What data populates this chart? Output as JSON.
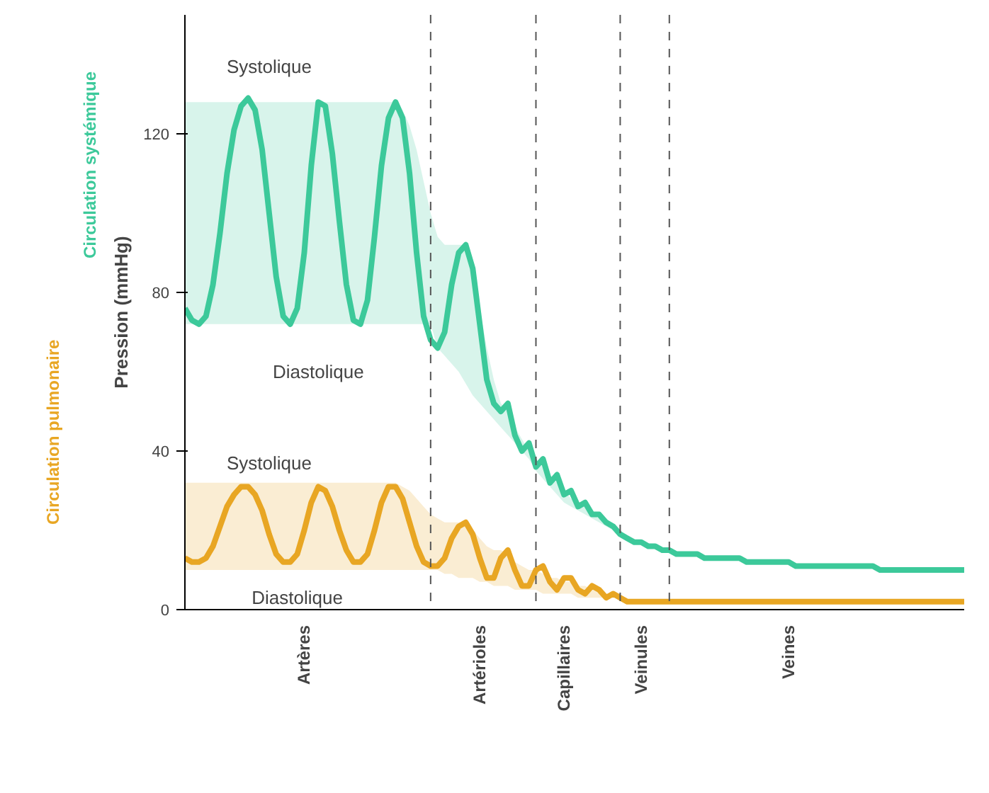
{
  "chart_data": {
    "type": "line",
    "ylabel": "Pression (mmHg)",
    "categories": [
      null,
      null,
      null,
      null,
      null,
      null,
      null,
      null,
      null,
      null,
      null,
      null,
      null,
      null,
      null,
      null,
      null,
      "Artères",
      null,
      null,
      null,
      null,
      null,
      null,
      null,
      null,
      null,
      null,
      null,
      null,
      null,
      null,
      null,
      null,
      null,
      null,
      null,
      null,
      null,
      null,
      null,
      null,
      "Artérioles",
      null,
      null,
      null,
      null,
      null,
      null,
      null,
      null,
      null,
      null,
      null,
      "Capillaires",
      null,
      null,
      null,
      null,
      null,
      null,
      null,
      null,
      null,
      null,
      "Veinules",
      null,
      null,
      null,
      null,
      null,
      null,
      null,
      null,
      null,
      null,
      null,
      null,
      null,
      null,
      null,
      null,
      null,
      null,
      null,
      null,
      "Veines",
      null,
      null,
      null,
      null,
      null,
      null,
      null,
      null,
      null,
      null,
      null,
      null,
      null,
      null,
      null,
      null,
      null,
      null,
      null,
      null,
      null,
      null,
      null,
      null,
      null
    ],
    "series": [
      {
        "name": "Circulation systémique",
        "color": "#3cc99a",
        "values": [
          76,
          73,
          72,
          74,
          82,
          95,
          110,
          121,
          127,
          129,
          126,
          116,
          100,
          84,
          74,
          72,
          76,
          90,
          112,
          128,
          127,
          115,
          98,
          82,
          73,
          72,
          78,
          94,
          112,
          124,
          128,
          124,
          110,
          90,
          74,
          68,
          66,
          70,
          82,
          90,
          92,
          86,
          72,
          58,
          52,
          50,
          52,
          44,
          40,
          42,
          36,
          38,
          32,
          34,
          29,
          30,
          26,
          27,
          24,
          24,
          22,
          21,
          19,
          18,
          17,
          17,
          16,
          16,
          15,
          15,
          14,
          14,
          14,
          14,
          13,
          13,
          13,
          13,
          13,
          13,
          12,
          12,
          12,
          12,
          12,
          12,
          12,
          11,
          11,
          11,
          11,
          11,
          11,
          11,
          11,
          11,
          11,
          11,
          11,
          10,
          10,
          10,
          10,
          10,
          10,
          10,
          10,
          10,
          10,
          10,
          10,
          10
        ],
        "upper": [
          128,
          128,
          128,
          128,
          128,
          128,
          128,
          128,
          128,
          128,
          128,
          128,
          128,
          128,
          128,
          128,
          128,
          128,
          128,
          128,
          128,
          128,
          128,
          128,
          128,
          128,
          128,
          128,
          128,
          128,
          128,
          126,
          122,
          116,
          108,
          100,
          94,
          92,
          92,
          92,
          92,
          86,
          76,
          66,
          58,
          52,
          50,
          46,
          43,
          40,
          38,
          36,
          34,
          32,
          30,
          28,
          27,
          26,
          24,
          23,
          22,
          21,
          20,
          null,
          null,
          null,
          null,
          null,
          null,
          null,
          null,
          null,
          null,
          null,
          null,
          null,
          null,
          null,
          null,
          null,
          null,
          null,
          null,
          null,
          null,
          null,
          null,
          null,
          null,
          null,
          null,
          null,
          null,
          null,
          null,
          null,
          null,
          null,
          null,
          null,
          null,
          null,
          null,
          null,
          null,
          null,
          null,
          null,
          null,
          null,
          null,
          null
        ],
        "lower": [
          72,
          72,
          72,
          72,
          72,
          72,
          72,
          72,
          72,
          72,
          72,
          72,
          72,
          72,
          72,
          72,
          72,
          72,
          72,
          72,
          72,
          72,
          72,
          72,
          72,
          72,
          72,
          72,
          72,
          72,
          72,
          72,
          72,
          72,
          72,
          72,
          66,
          64,
          62,
          60,
          57,
          54,
          52,
          50,
          48,
          46,
          44,
          42,
          40,
          38,
          35,
          33,
          31,
          29,
          27,
          26,
          25,
          24,
          23,
          22,
          21,
          20,
          19,
          null,
          null,
          null,
          null,
          null,
          null,
          null,
          null,
          null,
          null,
          null,
          null,
          null,
          null,
          null,
          null,
          null,
          null,
          null,
          null,
          null,
          null,
          null,
          null,
          null,
          null,
          null,
          null,
          null,
          null,
          null,
          null,
          null,
          null,
          null,
          null,
          null,
          null,
          null,
          null,
          null,
          null,
          null,
          null,
          null,
          null,
          null,
          null,
          null
        ]
      },
      {
        "name": "Circulation pulmonaire",
        "color": "#e8a623",
        "values": [
          13,
          12,
          12,
          13,
          16,
          21,
          26,
          29,
          31,
          31,
          29,
          25,
          19,
          14,
          12,
          12,
          14,
          20,
          27,
          31,
          30,
          26,
          20,
          15,
          12,
          12,
          14,
          20,
          27,
          31,
          31,
          28,
          22,
          16,
          12,
          11,
          11,
          13,
          18,
          21,
          22,
          19,
          13,
          8,
          8,
          13,
          15,
          10,
          6,
          6,
          10,
          11,
          7,
          5,
          8,
          8,
          5,
          4,
          6,
          5,
          3,
          4,
          3,
          2,
          2,
          2,
          2,
          2,
          2,
          2,
          2,
          2,
          2,
          2,
          2,
          2,
          2,
          2,
          2,
          2,
          2,
          2,
          2,
          2,
          2,
          2,
          2,
          2,
          2,
          2,
          2,
          2,
          2,
          2,
          2,
          2,
          2,
          2,
          2,
          2,
          2,
          2,
          2,
          2,
          2,
          2,
          2,
          2,
          2,
          2,
          2,
          2
        ],
        "upper": [
          32,
          32,
          32,
          32,
          32,
          32,
          32,
          32,
          32,
          32,
          32,
          32,
          32,
          32,
          32,
          32,
          32,
          32,
          32,
          32,
          32,
          32,
          32,
          32,
          32,
          32,
          32,
          32,
          32,
          32,
          32,
          31,
          30,
          28,
          26,
          24,
          23,
          22,
          22,
          22,
          22,
          20,
          18,
          16,
          15,
          15,
          14,
          12,
          11,
          10,
          10,
          9,
          8,
          8,
          7,
          7,
          6,
          6,
          5,
          5,
          4,
          4,
          3,
          null,
          null,
          null,
          null,
          null,
          null,
          null,
          null,
          null,
          null,
          null,
          null,
          null,
          null,
          null,
          null,
          null,
          null,
          null,
          null,
          null,
          null,
          null,
          null,
          null,
          null,
          null,
          null,
          null,
          null,
          null,
          null,
          null,
          null,
          null,
          null,
          null,
          null,
          null,
          null,
          null,
          null,
          null,
          null,
          null,
          null,
          null,
          null,
          null
        ],
        "lower": [
          10,
          10,
          10,
          10,
          10,
          10,
          10,
          10,
          10,
          10,
          10,
          10,
          10,
          10,
          10,
          10,
          10,
          10,
          10,
          10,
          10,
          10,
          10,
          10,
          10,
          10,
          10,
          10,
          10,
          10,
          10,
          10,
          10,
          10,
          10,
          10,
          10,
          9,
          9,
          8,
          8,
          8,
          7,
          7,
          6,
          6,
          6,
          5,
          5,
          5,
          5,
          4,
          4,
          4,
          4,
          4,
          3,
          3,
          3,
          3,
          3,
          3,
          3,
          null,
          null,
          null,
          null,
          null,
          null,
          null,
          null,
          null,
          null,
          null,
          null,
          null,
          null,
          null,
          null,
          null,
          null,
          null,
          null,
          null,
          null,
          null,
          null,
          null,
          null,
          null,
          null,
          null,
          null,
          null,
          null,
          null,
          null,
          null,
          null,
          null,
          null,
          null,
          null,
          null,
          null,
          null,
          null,
          null,
          null,
          null,
          null,
          null
        ]
      }
    ],
    "ylim": [
      0,
      150
    ],
    "yticks": [
      0,
      40,
      80,
      120
    ],
    "line_style": "solid",
    "annotations": [
      "Systolique",
      "Diastolique",
      "Systolique",
      "Diastolique"
    ]
  }
}
